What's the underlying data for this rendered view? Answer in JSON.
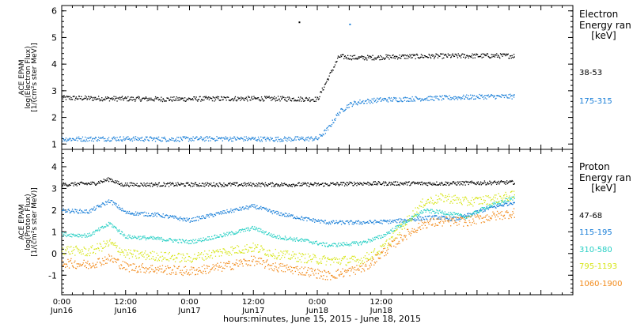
{
  "chart_data": [
    {
      "type": "scatter",
      "panel": "electron",
      "ylabel_lines": [
        "ACE EPAM",
        "log(Electron Flux)",
        "[1/(cm²s ster MeV)]"
      ],
      "ylim": [
        0.8,
        6.2
      ],
      "yticks": [
        1,
        2,
        3,
        4,
        5,
        6
      ],
      "xlim_hours": [
        0,
        96
      ],
      "legend_title": [
        "Electron",
        "Energy ran",
        "[keV]"
      ],
      "series": [
        {
          "name": "38-53",
          "color": "#000000",
          "x": [
            0,
            10,
            20,
            30,
            40,
            48,
            52,
            56,
            64,
            72,
            80,
            85
          ],
          "y": [
            2.75,
            2.72,
            2.7,
            2.72,
            2.72,
            2.7,
            4.3,
            4.25,
            4.3,
            4.32,
            4.33,
            4.33
          ]
        },
        {
          "name": "175-315",
          "color": "#1a7fd8",
          "x": [
            0,
            10,
            20,
            30,
            40,
            48,
            50,
            52,
            54,
            56,
            60,
            64,
            72,
            80,
            85
          ],
          "y": [
            1.2,
            1.22,
            1.2,
            1.22,
            1.2,
            1.22,
            1.6,
            2.2,
            2.5,
            2.6,
            2.68,
            2.7,
            2.75,
            2.8,
            2.8
          ]
        }
      ],
      "outliers": [
        {
          "x": 44.5,
          "y": 5.6
        },
        {
          "x": 54,
          "y": 5.52
        }
      ]
    },
    {
      "type": "scatter",
      "panel": "proton",
      "ylabel_lines": [
        "ACE EPAM",
        "log(Proton Flux)",
        "[1/(cm²s ster MeV)]"
      ],
      "ylim": [
        -1.9,
        4.8
      ],
      "yticks": [
        -1,
        0,
        1,
        2,
        3,
        4
      ],
      "xlim_hours": [
        0,
        96
      ],
      "legend_title": [
        "Proton",
        "Energy ran",
        "[keV]"
      ],
      "series": [
        {
          "name": "47-68",
          "color": "#000000",
          "x": [
            0,
            6,
            9,
            11,
            16,
            24,
            32,
            40,
            48,
            56,
            64,
            72,
            80,
            85
          ],
          "y": [
            3.2,
            3.25,
            3.45,
            3.2,
            3.2,
            3.2,
            3.2,
            3.2,
            3.2,
            3.25,
            3.25,
            3.25,
            3.28,
            3.3
          ]
        },
        {
          "name": "115-195",
          "color": "#1a7fd8",
          "x": [
            0,
            5,
            9,
            12,
            18,
            24,
            30,
            36,
            40,
            46,
            50,
            56,
            62,
            66,
            70,
            74,
            80,
            85
          ],
          "y": [
            2.0,
            1.95,
            2.45,
            1.9,
            1.8,
            1.55,
            1.9,
            2.2,
            1.9,
            1.6,
            1.45,
            1.45,
            1.5,
            1.6,
            1.7,
            1.6,
            2.1,
            2.4
          ]
        },
        {
          "name": "310-580",
          "color": "#27cfc4",
          "x": [
            0,
            5,
            9,
            12,
            18,
            24,
            30,
            36,
            40,
            46,
            50,
            56,
            60,
            64,
            68,
            72,
            76,
            80,
            85
          ],
          "y": [
            0.9,
            0.85,
            1.4,
            0.8,
            0.7,
            0.55,
            0.85,
            1.2,
            0.8,
            0.6,
            0.4,
            0.5,
            0.8,
            1.4,
            2.0,
            1.9,
            1.7,
            2.2,
            2.6
          ]
        },
        {
          "name": "795-1193",
          "color": "#d7e61a",
          "x": [
            0,
            5,
            9,
            12,
            18,
            24,
            30,
            36,
            40,
            46,
            50,
            56,
            60,
            64,
            68,
            72,
            76,
            80,
            85
          ],
          "y": [
            0.2,
            0.1,
            0.5,
            0.0,
            -0.1,
            -0.2,
            0.1,
            0.3,
            0.0,
            -0.2,
            -0.3,
            -0.3,
            0.2,
            1.3,
            2.4,
            2.6,
            2.4,
            2.5,
            2.7
          ]
        },
        {
          "name": "1060-1900",
          "color": "#f28a1a",
          "x": [
            0,
            5,
            9,
            12,
            18,
            24,
            30,
            36,
            40,
            46,
            50,
            54,
            57,
            60,
            64,
            68,
            72,
            76,
            80,
            85
          ],
          "y": [
            -0.4,
            -0.5,
            -0.2,
            -0.6,
            -0.7,
            -0.8,
            -0.6,
            -0.3,
            -0.6,
            -0.8,
            -1.0,
            -0.8,
            -0.6,
            0.0,
            0.8,
            1.4,
            1.5,
            1.5,
            1.7,
            1.9
          ]
        }
      ]
    }
  ],
  "x_axis": {
    "tick_labels": [
      {
        "hours": 0,
        "time": "0:00",
        "day": "Jun16"
      },
      {
        "hours": 12,
        "time": "12:00",
        "day": "Jun16"
      },
      {
        "hours": 24,
        "time": "0:00",
        "day": "Jun17"
      },
      {
        "hours": 36,
        "time": "12:00",
        "day": "Jun17"
      },
      {
        "hours": 48,
        "time": "0:00",
        "day": "Jun18"
      },
      {
        "hours": 60,
        "time": "12:00",
        "day": "Jun18"
      }
    ],
    "title": "hours:minutes, June 15, 2015 - June 18, 2015"
  }
}
